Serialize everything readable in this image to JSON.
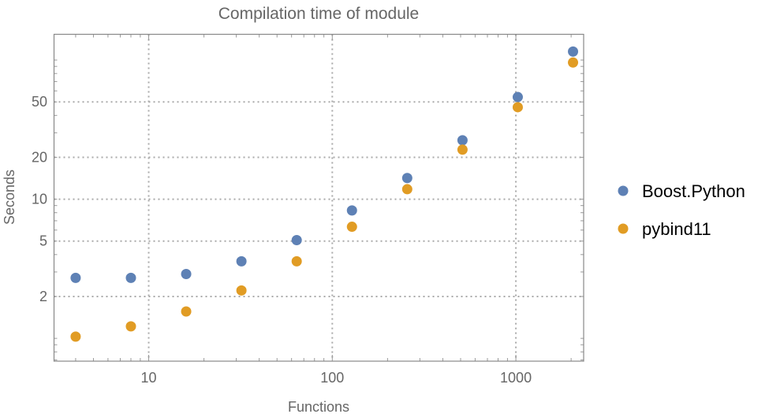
{
  "chart_data": {
    "type": "scatter",
    "title": "Compilation time of module",
    "xlabel": "Functions",
    "ylabel": "Seconds",
    "x_scale": "log",
    "y_scale": "log",
    "xlim": [
      3.05,
      2340
    ],
    "ylim": [
      0.686,
      153
    ],
    "grid": true,
    "legend_position": "right",
    "x_ticks": [
      10,
      100,
      1000
    ],
    "x_tick_labels": [
      "10",
      "100",
      "1000"
    ],
    "y_ticks": [
      2,
      5,
      10,
      20,
      50
    ],
    "y_tick_labels": [
      "2",
      "5",
      "10",
      "20",
      "50"
    ],
    "x": [
      4,
      8,
      16,
      32,
      64,
      128,
      256,
      512,
      1024,
      2048
    ],
    "series": [
      {
        "name": "Boost.Python",
        "color": "#5E81B5",
        "values": [
          2.72,
          2.72,
          2.9,
          3.58,
          5.08,
          8.3,
          14.2,
          26.5,
          54.2,
          115
        ]
      },
      {
        "name": "pybind11",
        "color": "#E19C24",
        "values": [
          1.03,
          1.22,
          1.56,
          2.21,
          3.58,
          6.34,
          11.8,
          22.7,
          45.8,
          96
        ]
      }
    ]
  }
}
